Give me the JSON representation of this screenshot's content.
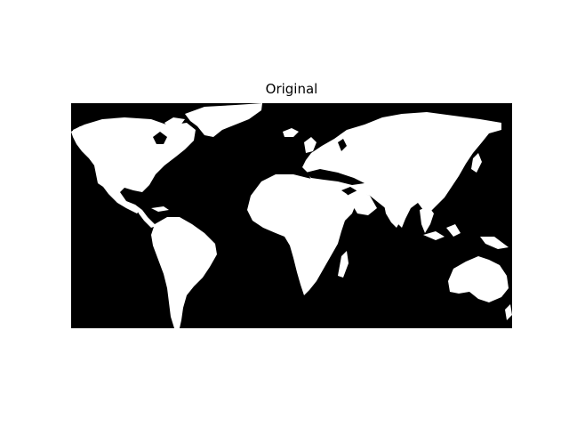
{
  "figure": {
    "title": "Original"
  },
  "map": {
    "background_color": "#000000",
    "land_color": "#ffffff"
  }
}
